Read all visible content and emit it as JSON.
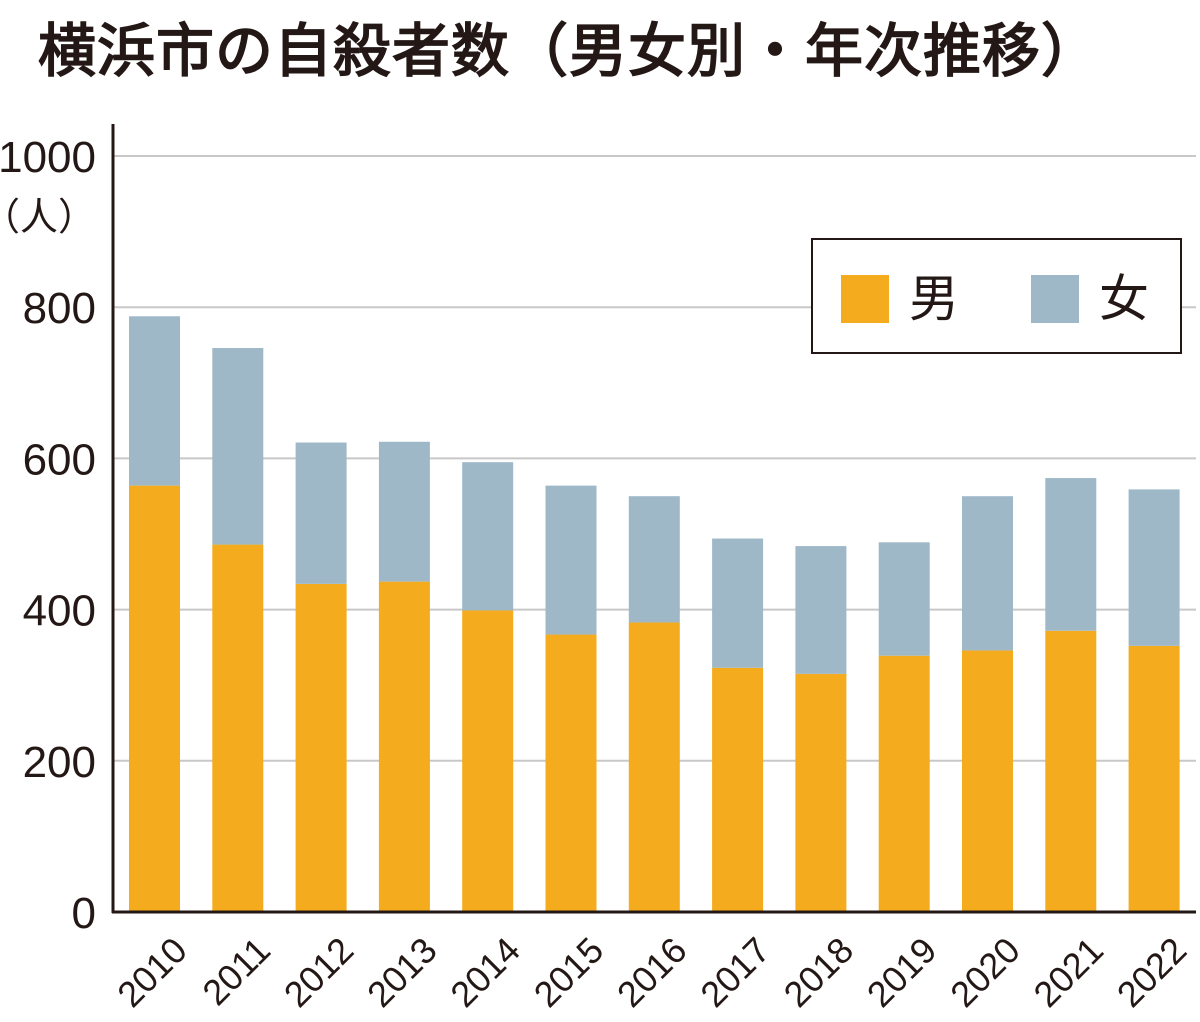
{
  "title": "横浜市の自殺者数（男女別・年次推移）",
  "chart_data": {
    "type": "bar",
    "stacked": true,
    "title": "横浜市の自殺者数（男女別・年次推移）",
    "xlabel": "",
    "ylabel": "（人）",
    "ylim": [
      0,
      1000
    ],
    "yticks": [
      0,
      200,
      400,
      600,
      800,
      1000
    ],
    "ytick_labels": [
      "0",
      "200",
      "400",
      "600",
      "800",
      "1000"
    ],
    "unit_label": "（人）",
    "grid": true,
    "legend_position": "top-right",
    "categories": [
      "2010",
      "2011",
      "2012",
      "2013",
      "2014",
      "2015",
      "2016",
      "2017",
      "2018",
      "2019",
      "2020",
      "2021",
      "2022"
    ],
    "series": [
      {
        "name": "男",
        "color": "#F4AB1D",
        "values": [
          564,
          486,
          434,
          437,
          399,
          367,
          383,
          323,
          315,
          339,
          346,
          372,
          352
        ]
      },
      {
        "name": "女",
        "color": "#9EB8C7",
        "values": [
          224,
          260,
          187,
          185,
          196,
          197,
          167,
          171,
          169,
          150,
          204,
          202,
          207
        ]
      }
    ],
    "totals": [
      788,
      746,
      621,
      622,
      595,
      564,
      550,
      494,
      484,
      489,
      550,
      574,
      559
    ]
  },
  "legend": {
    "items": [
      {
        "label": "男",
        "color": "#F4AB1D"
      },
      {
        "label": "女",
        "color": "#9EB8C7"
      }
    ]
  },
  "colors": {
    "axis": "#231815",
    "grid": "#c8c8c8",
    "text": "#231815"
  }
}
